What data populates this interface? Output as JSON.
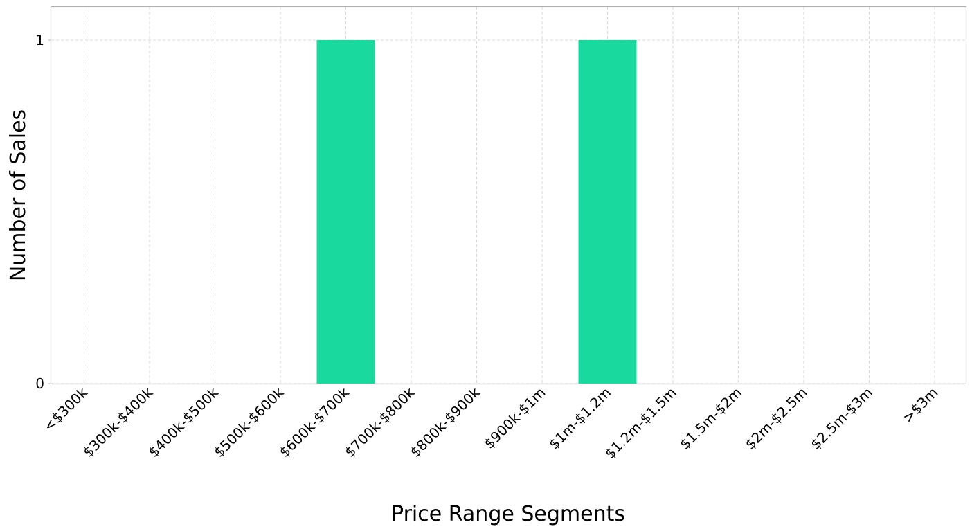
{
  "chart_data": {
    "type": "bar",
    "title": "",
    "xlabel": "Price Range Segments",
    "ylabel": "Number of Sales",
    "categories": [
      "<$300k",
      "$300k-$400k",
      "$400k-$500k",
      "$500k-$600k",
      "$600k-$700k",
      "$700k-$800k",
      "$800k-$900k",
      "$900k-$1m",
      "$1m-$1.2m",
      "$1.2m-$1.5m",
      "$1.5m-$2m",
      "$2m-$2.5m",
      "$2.5m-$3m",
      ">$3m"
    ],
    "values": [
      0,
      0,
      0,
      0,
      1,
      0,
      0,
      0,
      1,
      0,
      0,
      0,
      0,
      0
    ],
    "yticks": [
      "0",
      "1"
    ],
    "ylim": [
      0,
      1.1
    ],
    "grid": true,
    "bar_color": "#1ad99e"
  }
}
